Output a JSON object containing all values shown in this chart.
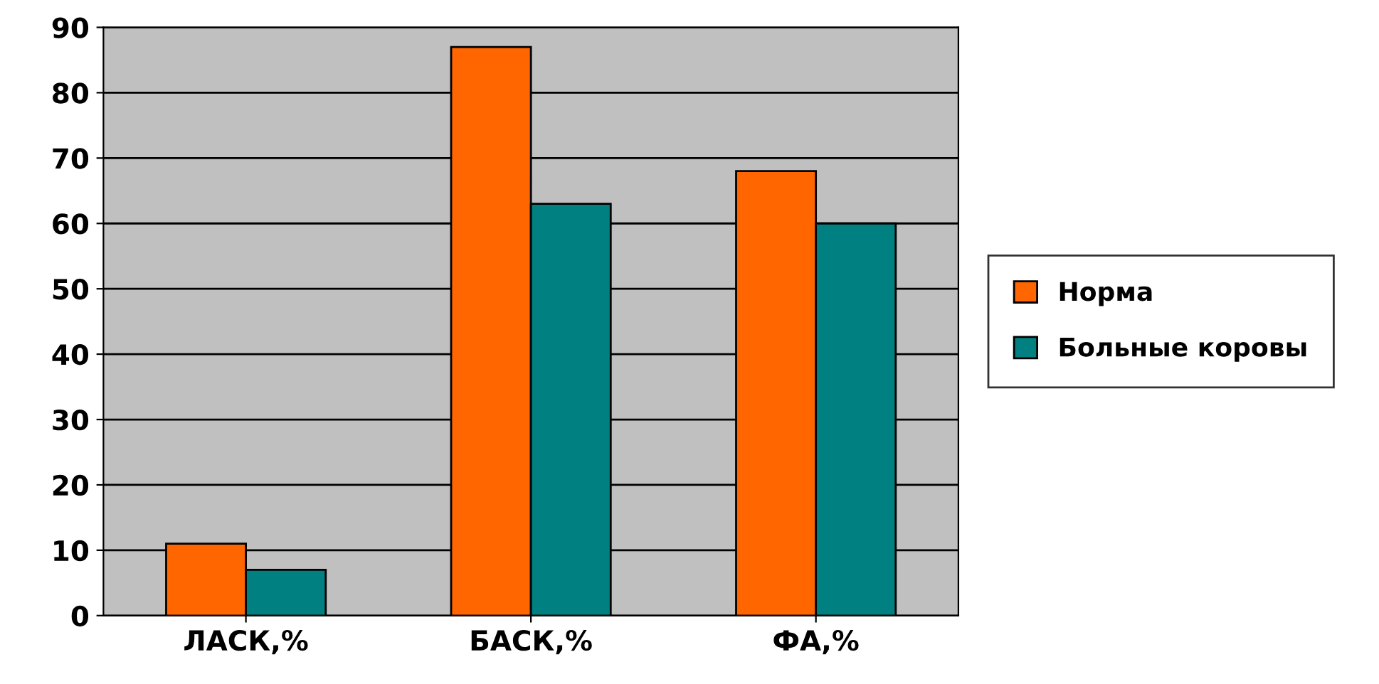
{
  "chart_data": {
    "type": "bar",
    "categories": [
      "ЛАСК,%",
      "БАСК,%",
      "ФА,%"
    ],
    "series": [
      {
        "name": "Норма",
        "color": "#ff6600",
        "values": [
          11,
          87,
          68
        ]
      },
      {
        "name": "Больные коровы",
        "color": "#008080",
        "values": [
          7,
          63,
          60
        ]
      }
    ],
    "ylim": [
      0,
      90
    ],
    "yticks": [
      0,
      10,
      20,
      30,
      40,
      50,
      60,
      70,
      80,
      90
    ],
    "grid": "y",
    "legend": "right"
  }
}
